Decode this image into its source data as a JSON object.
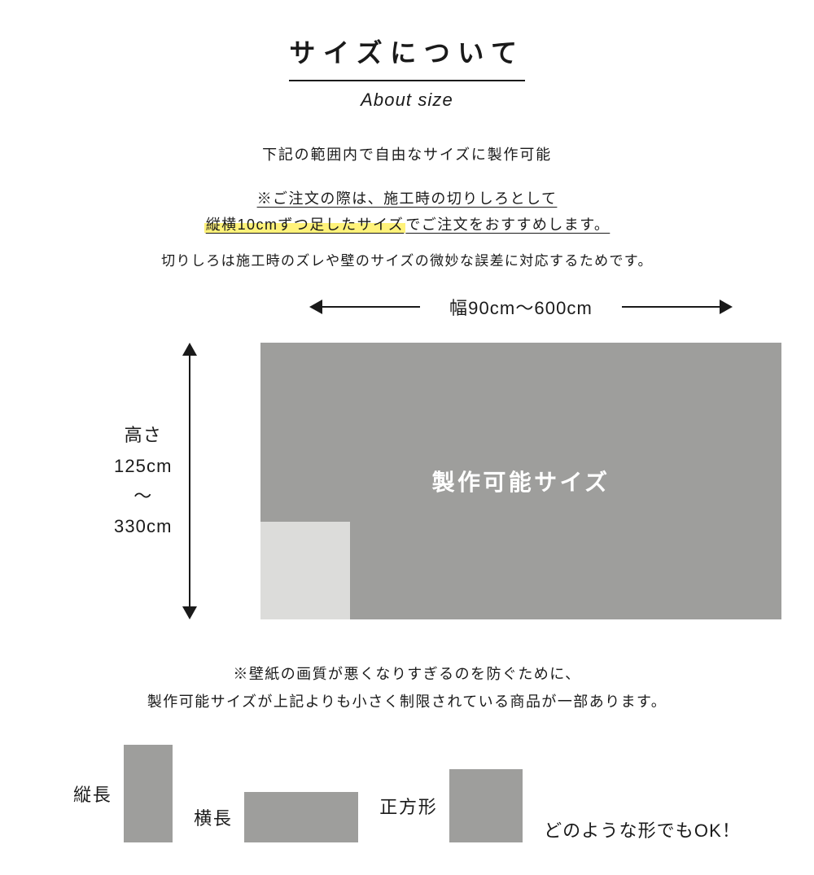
{
  "title": {
    "main": "サイズについて",
    "sub": "About size"
  },
  "intro": "下記の範囲内で自由なサイズに製作可能",
  "notice": {
    "line1": "※ご注文の際は、施工時の切りしろとして",
    "line2_highlight": "縦横10cmずつ足したサイズ",
    "line2_tail": "でご注文をおすすめします。"
  },
  "explain": "切りしろは施工時のズレや壁のサイズの微妙な誤差に対応するためです。",
  "diagram": {
    "width_label": "幅90cm～600cm",
    "height_label_1": "高さ",
    "height_label_2": "125cm",
    "height_label_3": "～",
    "height_label_4": "330cm",
    "main_rect_label": "製作可能サイズ",
    "main_rect_color": "#9e9e9c",
    "inner_rect_color": "#dcdcda",
    "text_color": "#1a1a1a",
    "rect_text_color": "#ffffff"
  },
  "footnote": {
    "line1": "※壁紙の画質が悪くなりすぎるのを防ぐために、",
    "line2": "製作可能サイズが上記よりも小さく制限されている商品が一部あります。"
  },
  "shapes": {
    "tall_label": "縦長",
    "wide_label": "横長",
    "square_label": "正方形",
    "any_label": "どのような形でもOK！",
    "fill_color": "#9e9e9c"
  },
  "styling": {
    "background": "#ffffff",
    "highlight_color": "#fff27a",
    "title_fontsize": 32,
    "sub_fontsize": 22,
    "body_fontsize": 18,
    "diagram_fontsize": 22,
    "rect_label_fontsize": 28
  }
}
